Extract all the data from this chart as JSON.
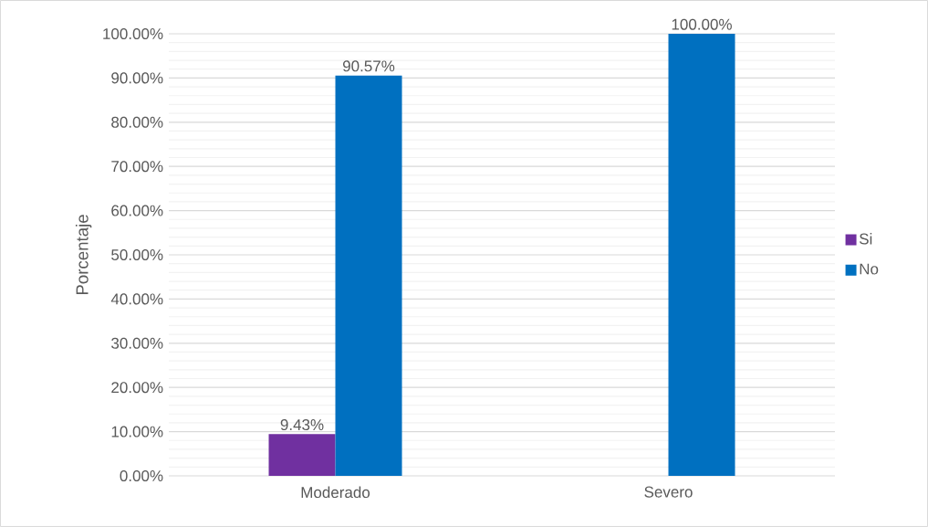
{
  "chart_data": {
    "type": "bar",
    "ylabel": "Porcentaje",
    "categories": [
      "Moderado",
      "Severo"
    ],
    "series": [
      {
        "name": "Si",
        "color": "#7030a0",
        "values": [
          9.43,
          null
        ],
        "value_labels": [
          "9.43%",
          null
        ]
      },
      {
        "name": "No",
        "color": "#0070c0",
        "values": [
          90.57,
          100
        ],
        "value_labels": [
          "90.57%",
          "100.00%"
        ]
      }
    ],
    "ylim": [
      0,
      100
    ],
    "yticks": [
      {
        "value": 0,
        "label": "0.00%"
      },
      {
        "value": 10,
        "label": "10.00%"
      },
      {
        "value": 20,
        "label": "20.00%"
      },
      {
        "value": 30,
        "label": "30.00%"
      },
      {
        "value": 40,
        "label": "40.00%"
      },
      {
        "value": 50,
        "label": "50.00%"
      },
      {
        "value": 60,
        "label": "60.00%"
      },
      {
        "value": 70,
        "label": "70.00%"
      },
      {
        "value": 80,
        "label": "80.00%"
      },
      {
        "value": 90,
        "label": "90.00%"
      },
      {
        "value": 100,
        "label": "100.00%"
      }
    ],
    "grid": "y",
    "legend": "right"
  }
}
